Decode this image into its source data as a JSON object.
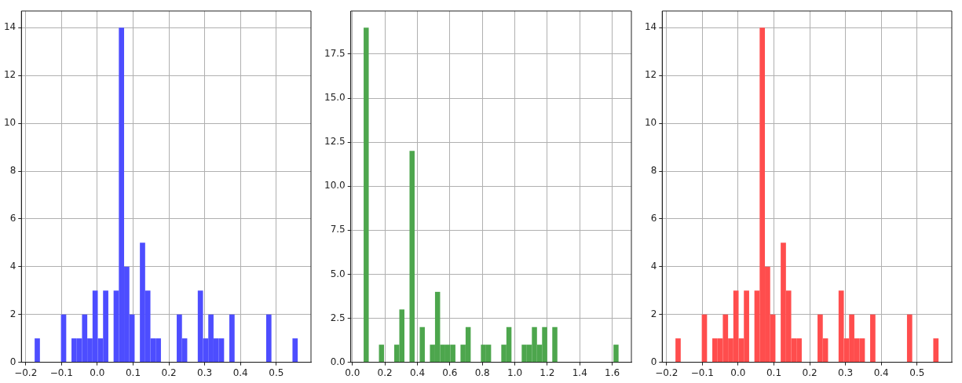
{
  "chart_data": [
    {
      "type": "histogram",
      "color": "#4d4dff",
      "grid": true,
      "bins": [
        -0.175,
        -0.1603,
        -0.1456,
        -0.1309,
        -0.1162,
        -0.1015,
        -0.0868,
        -0.0721,
        -0.0574,
        -0.0427,
        -0.028,
        -0.0133,
        0.0014,
        0.0161,
        0.0308,
        0.0455,
        0.0602,
        0.0749,
        0.0896,
        0.1043,
        0.119,
        0.1337,
        0.1484,
        0.1631,
        0.1778,
        0.1925,
        0.2072,
        0.2219,
        0.2366,
        0.2513,
        0.266,
        0.2807,
        0.2954,
        0.3101,
        0.3248,
        0.3395,
        0.3542,
        0.3689,
        0.3836,
        0.3983,
        0.413,
        0.4277,
        0.4424,
        0.4571,
        0.4718,
        0.4865,
        0.5012,
        0.5159,
        0.5306,
        0.5453,
        0.56
      ],
      "values": [
        1,
        0,
        0,
        0,
        0,
        2,
        0,
        1,
        1,
        2,
        1,
        3,
        1,
        3,
        0,
        3,
        14,
        4,
        2,
        0,
        5,
        3,
        1,
        1,
        0,
        0,
        0,
        2,
        1,
        0,
        0,
        3,
        1,
        2,
        1,
        1,
        0,
        2,
        0,
        0,
        0,
        0,
        0,
        0,
        2,
        0,
        0,
        0,
        0,
        1
      ],
      "xlim": [
        -0.212,
        0.597
      ],
      "ylim": [
        0,
        14.7
      ],
      "xticks": [
        {
          "value": -0.2,
          "label": "−0.2"
        },
        {
          "value": -0.1,
          "label": "−0.1"
        },
        {
          "value": 0,
          "label": "0.0"
        },
        0.1,
        0.2,
        0.3,
        0.4,
        0.5
      ],
      "yticks": [
        0,
        2,
        4,
        6,
        8,
        10,
        12,
        14
      ]
    },
    {
      "type": "histogram",
      "color": "#4da64d",
      "grid": true,
      "bins": [
        0.069,
        0.1004,
        0.1318,
        0.1632,
        0.1946,
        0.226,
        0.2574,
        0.2888,
        0.3202,
        0.3516,
        0.383,
        0.4144,
        0.4458,
        0.4772,
        0.5086,
        0.54,
        0.5714,
        0.6028,
        0.6342,
        0.6656,
        0.697,
        0.7284,
        0.7598,
        0.7912,
        0.8226,
        0.854,
        0.8854,
        0.9168,
        0.9482,
        0.9796,
        1.011,
        1.0424,
        1.0738,
        1.1052,
        1.1366,
        1.168,
        1.1994,
        1.2308,
        1.2622,
        1.2936,
        1.325,
        1.3564,
        1.3878,
        1.4192,
        1.4506,
        1.482,
        1.5134,
        1.5448,
        1.5762,
        1.6076,
        1.639
      ],
      "values": [
        19,
        0,
        0,
        1,
        0,
        0,
        1,
        3,
        0,
        12,
        0,
        2,
        0,
        1,
        4,
        1,
        1,
        1,
        0,
        1,
        2,
        0,
        0,
        1,
        1,
        0,
        0,
        1,
        2,
        0,
        0,
        1,
        1,
        2,
        1,
        2,
        0,
        2,
        0,
        0,
        0,
        0,
        0,
        0,
        0,
        0,
        0,
        0,
        0,
        1
      ],
      "xlim": [
        -0.01,
        1.718
      ],
      "ylim": [
        0,
        19.95
      ],
      "xticks": [
        {
          "value": 0,
          "label": "0.0"
        },
        0.2,
        0.4,
        0.6,
        0.8,
        {
          "value": 1,
          "label": "1.0"
        },
        1.2,
        1.4,
        1.6
      ],
      "yticks": [
        {
          "value": 0,
          "label": "0.0"
        },
        2.5,
        {
          "value": 5,
          "label": "5.0"
        },
        7.5,
        {
          "value": 10,
          "label": "10.0"
        },
        12.5,
        {
          "value": 15,
          "label": "15.0"
        },
        17.5
      ]
    },
    {
      "type": "histogram",
      "color": "#ff4d4d",
      "grid": true,
      "bins": [
        -0.175,
        -0.1603,
        -0.1456,
        -0.1309,
        -0.1162,
        -0.1015,
        -0.0868,
        -0.0721,
        -0.0574,
        -0.0427,
        -0.028,
        -0.0133,
        0.0014,
        0.0161,
        0.0308,
        0.0455,
        0.0602,
        0.0749,
        0.0896,
        0.1043,
        0.119,
        0.1337,
        0.1484,
        0.1631,
        0.1778,
        0.1925,
        0.2072,
        0.2219,
        0.2366,
        0.2513,
        0.266,
        0.2807,
        0.2954,
        0.3101,
        0.3248,
        0.3395,
        0.3542,
        0.3689,
        0.3836,
        0.3983,
        0.413,
        0.4277,
        0.4424,
        0.4571,
        0.4718,
        0.4865,
        0.5012,
        0.5159,
        0.5306,
        0.5453,
        0.56
      ],
      "values": [
        1,
        0,
        0,
        0,
        0,
        2,
        0,
        1,
        1,
        2,
        1,
        3,
        1,
        3,
        0,
        3,
        14,
        4,
        2,
        0,
        5,
        3,
        1,
        1,
        0,
        0,
        0,
        2,
        1,
        0,
        0,
        3,
        1,
        2,
        1,
        1,
        0,
        2,
        0,
        0,
        0,
        0,
        0,
        0,
        2,
        0,
        0,
        0,
        0,
        1
      ],
      "xlim": [
        -0.212,
        0.597
      ],
      "ylim": [
        0,
        14.7
      ],
      "xticks": [
        {
          "value": -0.2,
          "label": "−0.2"
        },
        {
          "value": -0.1,
          "label": "−0.1"
        },
        {
          "value": 0,
          "label": "0.0"
        },
        0.1,
        0.2,
        0.3,
        0.4,
        0.5
      ],
      "yticks": [
        0,
        2,
        4,
        6,
        8,
        10,
        12,
        14
      ]
    }
  ]
}
